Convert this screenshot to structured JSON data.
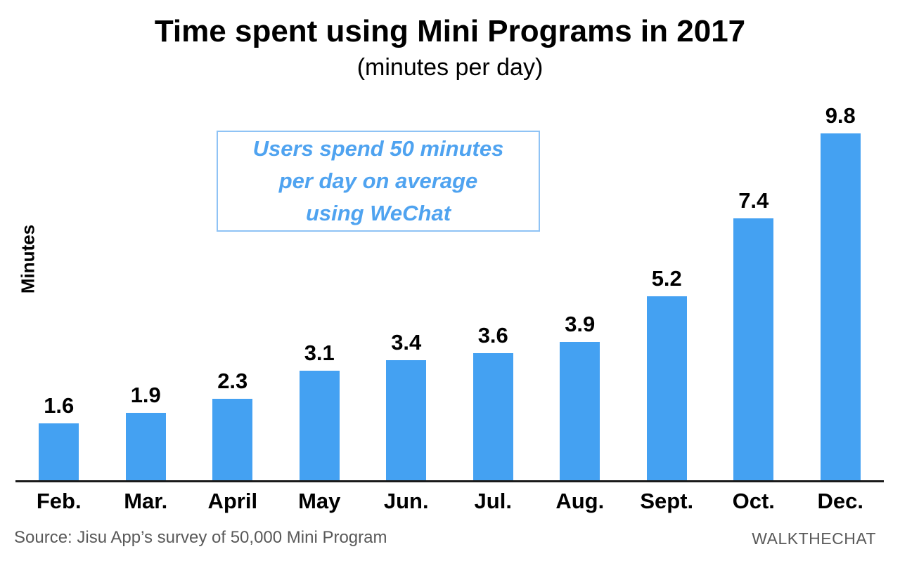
{
  "chart_data": {
    "type": "bar",
    "title": "Time spent using Mini Programs in 2017",
    "subtitle": "(minutes per day)",
    "xlabel": "",
    "ylabel": "Minutes",
    "categories": [
      "Feb.",
      "Mar.",
      "April",
      "May",
      "Jun.",
      "Jul.",
      "Aug.",
      "Sept.",
      "Oct.",
      "Dec."
    ],
    "values": [
      1.6,
      1.9,
      2.3,
      3.1,
      3.4,
      3.6,
      3.9,
      5.2,
      7.4,
      9.8
    ],
    "ylim": [
      0,
      10
    ],
    "grid": false,
    "legend": false,
    "annotation": "Users spend 50 minutes\nper day on average\nusing WeChat"
  },
  "footer": {
    "source": "Source: Jisu App’s survey of 50,000 Mini Program",
    "brand": "WALKTHECHAT"
  },
  "colors": {
    "bar": "#44A1F2",
    "annotation_text": "#4FA3F0",
    "annotation_border": "#8FC3F5",
    "axis_line": "#1A1A1A",
    "title_text": "#000000",
    "footer_text": "#595959",
    "background": "#FFFFFF"
  }
}
